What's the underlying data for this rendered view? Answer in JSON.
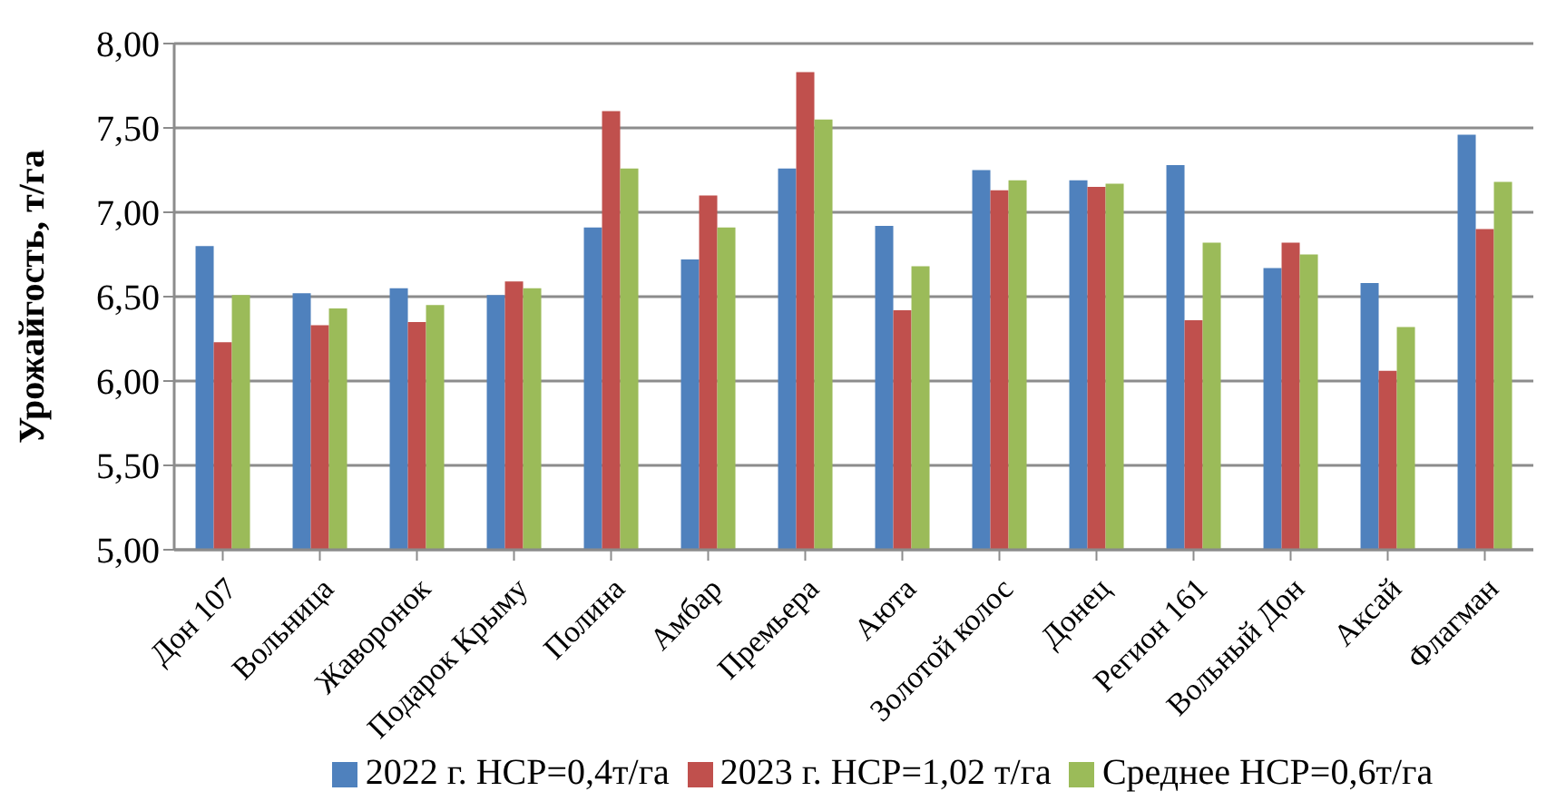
{
  "chart_data": {
    "type": "bar",
    "ylabel": "Урожайгость, т/га",
    "categories": [
      "Дон 107",
      "Вольница",
      "Жаворонок",
      "Подарок Крыму",
      "Полина",
      "Амбар",
      "Премьера",
      "Аюта",
      "Золотой колос",
      "Донец",
      "Регион 161",
      "Вольный Дон",
      "Аксай",
      "Флагман"
    ],
    "series": [
      {
        "name": "2022 г. НСР=0,4т/га",
        "color": "#4f81bd",
        "values": [
          6.8,
          6.52,
          6.55,
          6.51,
          6.91,
          6.72,
          7.26,
          6.92,
          7.25,
          7.19,
          7.28,
          6.67,
          6.58,
          7.46
        ]
      },
      {
        "name": "2023 г. НСР=1,02 т/га",
        "color": "#c0504d",
        "values": [
          6.23,
          6.33,
          6.35,
          6.59,
          7.6,
          7.1,
          7.83,
          6.42,
          7.13,
          7.15,
          6.36,
          6.82,
          6.06,
          6.9
        ]
      },
      {
        "name": "Среднее НСР=0,6т/га",
        "color": "#9bbb59",
        "values": [
          6.51,
          6.43,
          6.45,
          6.55,
          7.26,
          6.91,
          7.55,
          6.68,
          7.19,
          7.17,
          6.82,
          6.75,
          6.32,
          7.18
        ]
      }
    ],
    "ylim": [
      5,
      8
    ],
    "yticks": [
      {
        "value": 5,
        "label": "5,00"
      },
      {
        "value": 5.5,
        "label": "5,50"
      },
      {
        "value": 6,
        "label": "6,00"
      },
      {
        "value": 6.5,
        "label": "6,50"
      },
      {
        "value": 7,
        "label": "7,00"
      },
      {
        "value": 7.5,
        "label": "7,50"
      },
      {
        "value": 8,
        "label": "8,00"
      }
    ],
    "grid": "y",
    "legend": "bottom"
  }
}
